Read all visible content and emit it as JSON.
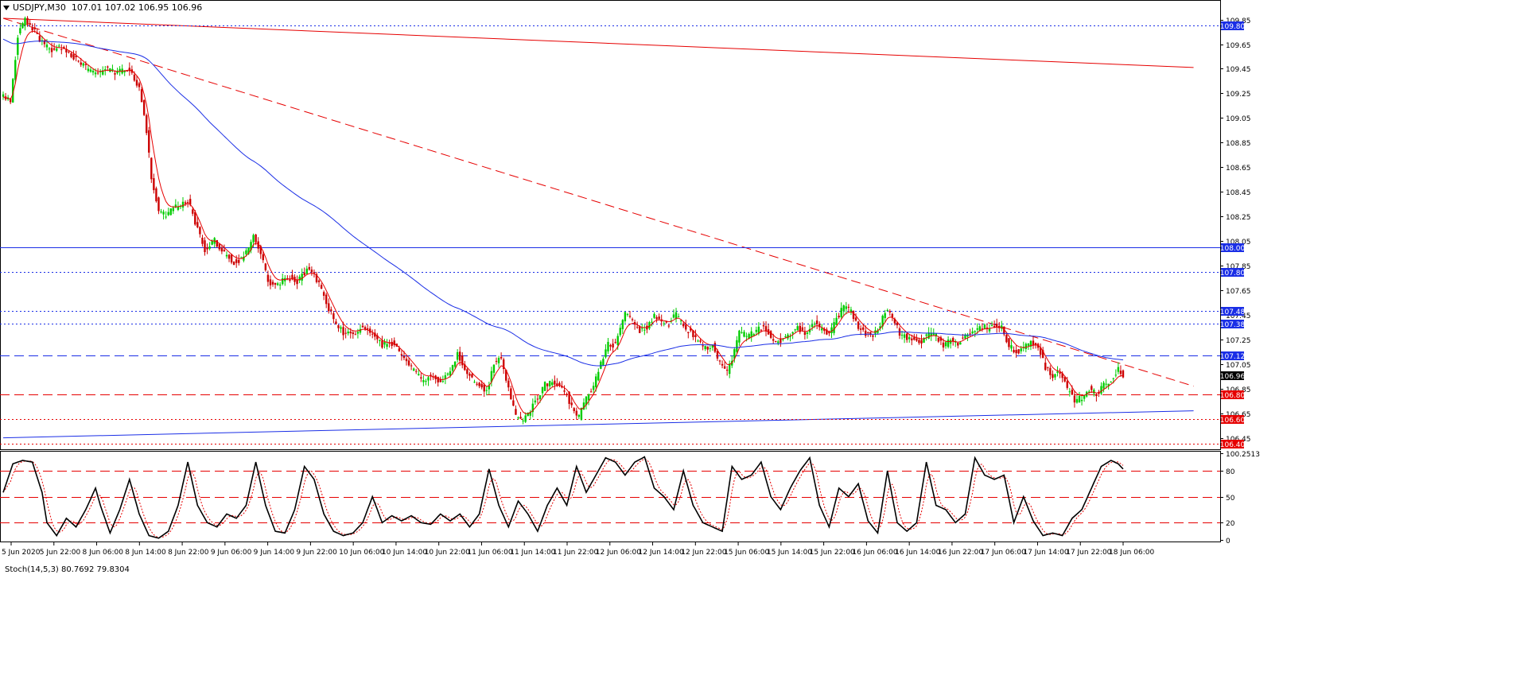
{
  "header": {
    "symbol_timeframe": "USDJPY,M30",
    "ohlc": "107.01 107.02 106.95 106.96"
  },
  "indicator": {
    "label": "Stoch(14,5,3) 80.7692 79.8304"
  },
  "colors": {
    "bull": "#00cc00",
    "bear": "#cc0000",
    "ma_fast": "#e60000",
    "ma_slow": "#1a2ee6",
    "level_blue": "#1a2ee6",
    "level_red": "#e60000",
    "tag_blue": "#1a2ee6",
    "tag_red": "#e60000",
    "tag_black": "#000000"
  },
  "chart_data": [
    {
      "type": "candlestick",
      "symbol": "USDJPY",
      "timeframe": "M30",
      "ylim": [
        106.37,
        109.97
      ],
      "y_ticks": [
        "109.85",
        "109.65",
        "109.45",
        "109.25",
        "109.05",
        "108.85",
        "108.65",
        "108.45",
        "108.25",
        "108.05",
        "107.85",
        "107.65",
        "107.45",
        "107.25",
        "107.05",
        "106.85",
        "106.65",
        "106.45"
      ],
      "x_ticks": [
        "5 Jun 2020",
        "5 Jun 22:00",
        "8 Jun 06:00",
        "8 Jun 14:00",
        "8 Jun 22:00",
        "9 Jun 06:00",
        "9 Jun 14:00",
        "9 Jun 22:00",
        "10 Jun 06:00",
        "10 Jun 14:00",
        "10 Jun 22:00",
        "11 Jun 06:00",
        "11 Jun 14:00",
        "11 Jun 22:00",
        "12 Jun 06:00",
        "12 Jun 14:00",
        "12 Jun 22:00",
        "15 Jun 06:00",
        "15 Jun 14:00",
        "15 Jun 22:00",
        "16 Jun 06:00",
        "16 Jun 14:00",
        "16 Jun 22:00",
        "17 Jun 06:00",
        "17 Jun 14:00",
        "17 Jun 22:00",
        "18 Jun 06:00"
      ],
      "anchors": [
        [
          0,
          109.22
        ],
        [
          3,
          109.18
        ],
        [
          6,
          109.72
        ],
        [
          9,
          109.85
        ],
        [
          12,
          109.78
        ],
        [
          16,
          109.66
        ],
        [
          20,
          109.6
        ],
        [
          24,
          109.62
        ],
        [
          28,
          109.56
        ],
        [
          33,
          109.47
        ],
        [
          38,
          109.4
        ],
        [
          42,
          109.45
        ],
        [
          46,
          109.42
        ],
        [
          52,
          109.45
        ],
        [
          56,
          109.3
        ],
        [
          59,
          108.95
        ],
        [
          61,
          108.55
        ],
        [
          64,
          108.3
        ],
        [
          67,
          108.25
        ],
        [
          70,
          108.32
        ],
        [
          73,
          108.34
        ],
        [
          76,
          108.38
        ],
        [
          80,
          108.15
        ],
        [
          83,
          107.98
        ],
        [
          87,
          108.05
        ],
        [
          91,
          107.95
        ],
        [
          95,
          107.88
        ],
        [
          98,
          107.9
        ],
        [
          101,
          108.0
        ],
        [
          103,
          108.12
        ],
        [
          106,
          107.95
        ],
        [
          109,
          107.72
        ],
        [
          112,
          107.68
        ],
        [
          115,
          107.74
        ],
        [
          118,
          107.75
        ],
        [
          121,
          107.72
        ],
        [
          125,
          107.82
        ],
        [
          128,
          107.78
        ],
        [
          131,
          107.65
        ],
        [
          134,
          107.5
        ],
        [
          137,
          107.38
        ],
        [
          140,
          107.3
        ],
        [
          144,
          107.3
        ],
        [
          148,
          107.35
        ],
        [
          152,
          107.28
        ],
        [
          156,
          107.2
        ],
        [
          160,
          107.22
        ],
        [
          164,
          107.12
        ],
        [
          168,
          107.02
        ],
        [
          172,
          106.92
        ],
        [
          176,
          106.95
        ],
        [
          180,
          106.9
        ],
        [
          184,
          106.98
        ],
        [
          187,
          107.15
        ],
        [
          190,
          107.0
        ],
        [
          193,
          106.92
        ],
        [
          196,
          106.88
        ],
        [
          199,
          106.82
        ],
        [
          202,
          107.05
        ],
        [
          205,
          107.1
        ],
        [
          208,
          106.85
        ],
        [
          211,
          106.62
        ],
        [
          214,
          106.58
        ],
        [
          217,
          106.68
        ],
        [
          220,
          106.78
        ],
        [
          223,
          106.88
        ],
        [
          226,
          106.9
        ],
        [
          229,
          106.88
        ],
        [
          232,
          106.8
        ],
        [
          235,
          106.65
        ],
        [
          237,
          106.62
        ],
        [
          240,
          106.78
        ],
        [
          243,
          106.88
        ],
        [
          246,
          107.05
        ],
        [
          249,
          107.22
        ],
        [
          252,
          107.2
        ],
        [
          256,
          107.45
        ],
        [
          259,
          107.4
        ],
        [
          262,
          107.32
        ],
        [
          265,
          107.35
        ],
        [
          268,
          107.45
        ],
        [
          271,
          107.4
        ],
        [
          274,
          107.38
        ],
        [
          277,
          107.46
        ],
        [
          280,
          107.35
        ],
        [
          283,
          107.3
        ],
        [
          286,
          107.22
        ],
        [
          289,
          107.18
        ],
        [
          292,
          107.2
        ],
        [
          295,
          107.05
        ],
        [
          298,
          106.98
        ],
        [
          300,
          107.1
        ],
        [
          303,
          107.3
        ],
        [
          306,
          107.28
        ],
        [
          309,
          107.3
        ],
        [
          312,
          107.35
        ],
        [
          315,
          107.3
        ],
        [
          318,
          107.22
        ],
        [
          321,
          107.26
        ],
        [
          324,
          107.3
        ],
        [
          327,
          107.35
        ],
        [
          330,
          107.3
        ],
        [
          334,
          107.4
        ],
        [
          337,
          107.32
        ],
        [
          340,
          107.28
        ],
        [
          343,
          107.42
        ],
        [
          346,
          107.52
        ],
        [
          349,
          107.48
        ],
        [
          352,
          107.35
        ],
        [
          355,
          107.3
        ],
        [
          358,
          107.28
        ],
        [
          361,
          107.38
        ],
        [
          364,
          107.5
        ],
        [
          366,
          107.42
        ],
        [
          369,
          107.3
        ],
        [
          372,
          107.26
        ],
        [
          375,
          107.25
        ],
        [
          378,
          107.24
        ],
        [
          381,
          107.3
        ],
        [
          384,
          107.28
        ],
        [
          387,
          107.2
        ],
        [
          390,
          107.24
        ],
        [
          393,
          107.22
        ],
        [
          396,
          107.28
        ],
        [
          399,
          107.3
        ],
        [
          402,
          107.36
        ],
        [
          405,
          107.34
        ],
        [
          408,
          107.36
        ],
        [
          411,
          107.34
        ],
        [
          414,
          107.2
        ],
        [
          417,
          107.15
        ],
        [
          420,
          107.18
        ],
        [
          423,
          107.22
        ],
        [
          426,
          107.2
        ],
        [
          429,
          107.02
        ],
        [
          432,
          106.95
        ],
        [
          435,
          106.98
        ],
        [
          438,
          106.85
        ],
        [
          441,
          106.75
        ],
        [
          444,
          106.78
        ],
        [
          447,
          106.85
        ],
        [
          450,
          106.8
        ],
        [
          453,
          106.88
        ],
        [
          456,
          106.92
        ],
        [
          459,
          107.0
        ],
        [
          461,
          106.96
        ]
      ],
      "n_candles": 462,
      "indicators": {
        "ma_fast": {
          "type": "moving_average",
          "color": "#e60000"
        },
        "ma_slow": {
          "type": "moving_average",
          "color": "#1a2ee6"
        }
      },
      "trendlines": [
        {
          "style": "solid",
          "color": "red",
          "from": [
            0,
            109.86
          ],
          "to": [
            490,
            109.46
          ]
        },
        {
          "style": "dashed",
          "color": "red",
          "from": [
            0,
            109.86
          ],
          "to": [
            490,
            106.87
          ]
        },
        {
          "style": "solid",
          "color": "blue",
          "from": [
            0,
            106.45
          ],
          "to": [
            490,
            106.67
          ]
        }
      ],
      "levels": [
        {
          "value": 109.8,
          "label": "109.80",
          "style": "dotted",
          "color": "blue",
          "tag": "blue"
        },
        {
          "value": 108.0,
          "label": "108.00",
          "style": "solid",
          "color": "blue",
          "tag": "blue"
        },
        {
          "value": 107.8,
          "label": "107.80",
          "style": "dotted",
          "color": "blue",
          "tag": "blue"
        },
        {
          "value": 107.48,
          "label": "107.48",
          "style": "dotted",
          "color": "blue",
          "tag": "blue"
        },
        {
          "value": 107.38,
          "label": "107.38",
          "style": "dotted",
          "color": "blue",
          "tag": "blue"
        },
        {
          "value": 107.12,
          "label": "107.12",
          "style": "dashed",
          "color": "blue",
          "tag": "blue"
        },
        {
          "value": 106.8,
          "label": "106.80",
          "style": "dashed",
          "color": "red",
          "tag": "red"
        },
        {
          "value": 106.6,
          "label": "106.60",
          "style": "dotted",
          "color": "red",
          "tag": "red"
        },
        {
          "value": 106.4,
          "label": "106.40",
          "style": "dotted",
          "color": "red",
          "tag": "red"
        }
      ],
      "current_price": {
        "value": 106.96,
        "label": "106.96"
      }
    },
    {
      "type": "line",
      "name": "Stoch(14,5,3)",
      "main_value": 80.7692,
      "signal_value": 79.8304,
      "ylim": [
        0,
        100.2513
      ],
      "y_ticks": [
        "100.2513",
        "80",
        "50",
        "20",
        "0"
      ],
      "levels": [
        80,
        50,
        20
      ],
      "anchors_main": [
        [
          0,
          55
        ],
        [
          4,
          88
        ],
        [
          8,
          92
        ],
        [
          12,
          90
        ],
        [
          16,
          55
        ],
        [
          18,
          20
        ],
        [
          22,
          5
        ],
        [
          26,
          25
        ],
        [
          30,
          15
        ],
        [
          34,
          35
        ],
        [
          38,
          60
        ],
        [
          40,
          40
        ],
        [
          44,
          8
        ],
        [
          48,
          35
        ],
        [
          52,
          70
        ],
        [
          56,
          30
        ],
        [
          60,
          5
        ],
        [
          64,
          2
        ],
        [
          68,
          10
        ],
        [
          72,
          40
        ],
        [
          76,
          90
        ],
        [
          80,
          40
        ],
        [
          84,
          20
        ],
        [
          88,
          15
        ],
        [
          92,
          30
        ],
        [
          96,
          25
        ],
        [
          100,
          40
        ],
        [
          104,
          90
        ],
        [
          108,
          40
        ],
        [
          112,
          10
        ],
        [
          116,
          8
        ],
        [
          120,
          35
        ],
        [
          124,
          85
        ],
        [
          128,
          70
        ],
        [
          132,
          30
        ],
        [
          136,
          10
        ],
        [
          140,
          5
        ],
        [
          144,
          8
        ],
        [
          148,
          20
        ],
        [
          152,
          50
        ],
        [
          156,
          20
        ],
        [
          160,
          28
        ],
        [
          164,
          22
        ],
        [
          168,
          28
        ],
        [
          172,
          20
        ],
        [
          176,
          18
        ],
        [
          180,
          30
        ],
        [
          184,
          22
        ],
        [
          188,
          30
        ],
        [
          192,
          15
        ],
        [
          196,
          30
        ],
        [
          200,
          82
        ],
        [
          204,
          40
        ],
        [
          208,
          15
        ],
        [
          212,
          45
        ],
        [
          216,
          30
        ],
        [
          220,
          10
        ],
        [
          224,
          40
        ],
        [
          228,
          60
        ],
        [
          232,
          40
        ],
        [
          236,
          85
        ],
        [
          240,
          55
        ],
        [
          244,
          75
        ],
        [
          248,
          95
        ],
        [
          252,
          90
        ],
        [
          256,
          75
        ],
        [
          260,
          90
        ],
        [
          264,
          96
        ],
        [
          268,
          60
        ],
        [
          272,
          50
        ],
        [
          276,
          35
        ],
        [
          280,
          80
        ],
        [
          284,
          40
        ],
        [
          288,
          20
        ],
        [
          292,
          15
        ],
        [
          296,
          10
        ],
        [
          300,
          85
        ],
        [
          304,
          70
        ],
        [
          308,
          75
        ],
        [
          312,
          90
        ],
        [
          316,
          50
        ],
        [
          320,
          35
        ],
        [
          324,
          60
        ],
        [
          328,
          80
        ],
        [
          332,
          95
        ],
        [
          336,
          40
        ],
        [
          340,
          15
        ],
        [
          344,
          60
        ],
        [
          348,
          50
        ],
        [
          352,
          65
        ],
        [
          356,
          22
        ],
        [
          360,
          8
        ],
        [
          364,
          80
        ],
        [
          368,
          20
        ],
        [
          372,
          10
        ],
        [
          376,
          20
        ],
        [
          380,
          90
        ],
        [
          384,
          40
        ],
        [
          388,
          35
        ],
        [
          392,
          20
        ],
        [
          396,
          30
        ],
        [
          400,
          95
        ],
        [
          404,
          75
        ],
        [
          408,
          70
        ],
        [
          412,
          75
        ],
        [
          416,
          20
        ],
        [
          420,
          50
        ],
        [
          424,
          22
        ],
        [
          428,
          5
        ],
        [
          432,
          8
        ],
        [
          436,
          5
        ],
        [
          440,
          25
        ],
        [
          444,
          35
        ],
        [
          448,
          60
        ],
        [
          452,
          85
        ],
        [
          456,
          92
        ],
        [
          459,
          88
        ],
        [
          461,
          82
        ]
      ]
    }
  ]
}
